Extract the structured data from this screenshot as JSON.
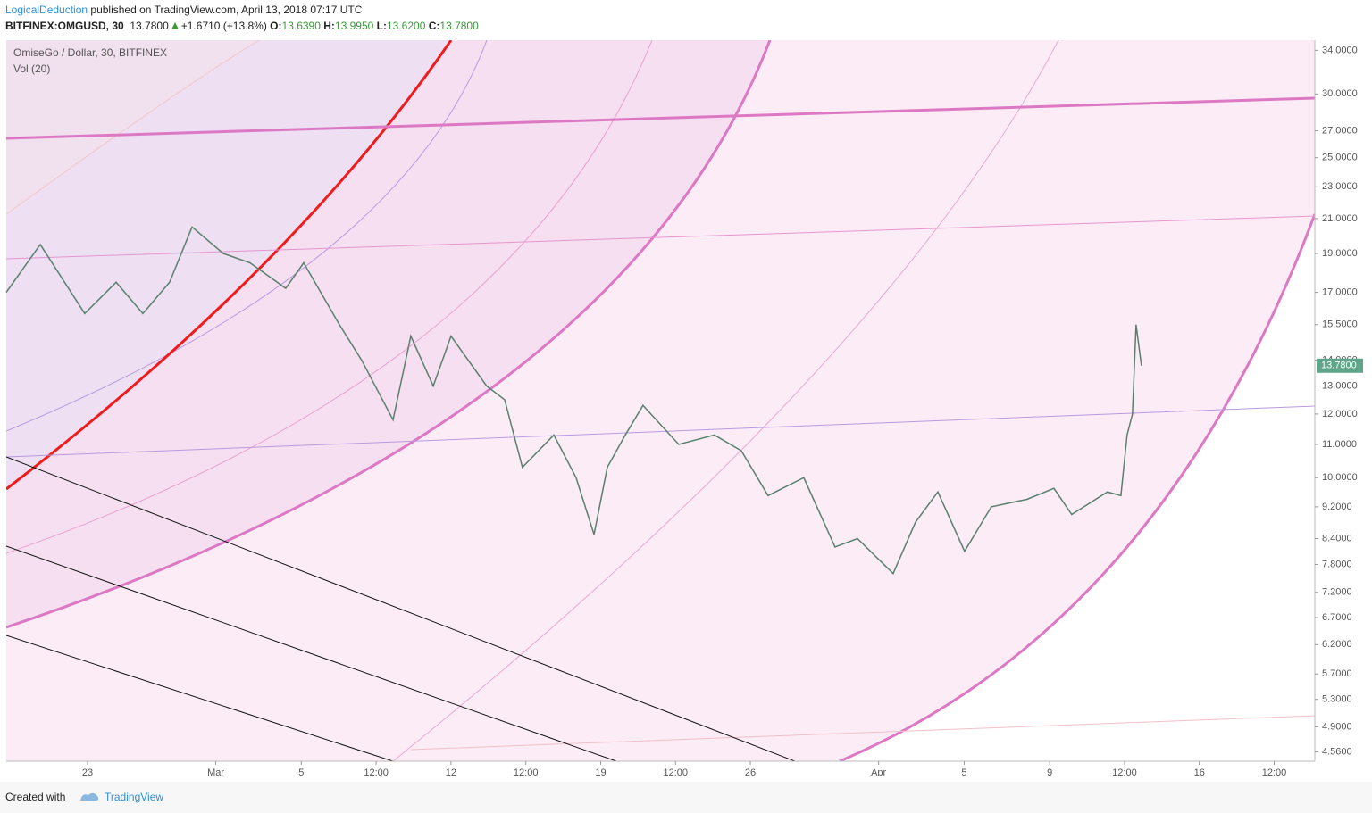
{
  "header": {
    "author": "LogicalDeduction",
    "published": "published on TradingView.com, April 13, 2018 07:17 UTC"
  },
  "symbol_bar": {
    "symbol": "BITFINEX:OMGUSD, 30",
    "last": "13.7800",
    "change": "+1.6710 (+13.8%)",
    "open": {
      "label": "O:",
      "value": "13.6390"
    },
    "high": {
      "label": "H:",
      "value": "13.9950"
    },
    "low": {
      "label": "L:",
      "value": "13.6200"
    },
    "close": {
      "label": "C:",
      "value": "13.7800"
    }
  },
  "chart_data": {
    "type": "line",
    "title": "OmiseGo / Dollar, 30, BITFINEX",
    "subtitle": "Vol (20)",
    "x": [
      -3.8,
      -2.21,
      -0.13,
      1.34,
      2.59,
      3.84,
      4.89,
      6.35,
      7.6,
      9.27,
      10.11,
      11.78,
      12.82,
      14.29,
      15.12,
      16.17,
      17,
      18.67,
      19.51,
      20.34,
      21.81,
      22.85,
      23.69,
      24.31,
      25.15,
      25.98,
      27.65,
      29.32,
      30.58,
      31.83,
      33.5,
      34.96,
      36.01,
      37.68,
      38.72,
      39.77,
      41.02,
      42.27,
      43.94,
      45.2,
      46.03,
      47.7,
      48.33,
      48.62,
      48.87,
      49.04,
      49.29
    ],
    "values": [
      17,
      19.5,
      16,
      17.5,
      16,
      17.5,
      20.5,
      19,
      18.5,
      17.2,
      18.5,
      15.5,
      14,
      11.8,
      15,
      13,
      15,
      13,
      12.5,
      10.3,
      11.3,
      10,
      8.5,
      10.3,
      11.3,
      12.3,
      11,
      11.3,
      10.8,
      9.5,
      10,
      8.2,
      8.4,
      7.6,
      8.8,
      9.6,
      8.1,
      9.2,
      9.4,
      9.7,
      9,
      9.6,
      9.5,
      11.3,
      12,
      15.5,
      13.78
    ],
    "color": "#5a7f6e",
    "log_y": true,
    "xlim": [
      -3.8,
      57.4
    ],
    "ylim": [
      4.44,
      35
    ],
    "yticks": [
      {
        "value": 34,
        "label": "34.0000"
      },
      {
        "value": 30,
        "label": "30.0000"
      },
      {
        "value": 27,
        "label": "27.0000"
      },
      {
        "value": 25,
        "label": "25.0000"
      },
      {
        "value": 23,
        "label": "23.0000"
      },
      {
        "value": 21,
        "label": "21.0000"
      },
      {
        "value": 19,
        "label": "19.0000"
      },
      {
        "value": 17,
        "label": "17.0000"
      },
      {
        "value": 15.5,
        "label": "15.5000"
      },
      {
        "value": 14,
        "label": "14.0000"
      },
      {
        "value": 13,
        "label": "13.0000"
      },
      {
        "value": 12,
        "label": "12.0000"
      },
      {
        "value": 11,
        "label": "11.0000"
      },
      {
        "value": 10,
        "label": "10.0000"
      },
      {
        "value": 9.2,
        "label": "9.2000"
      },
      {
        "value": 8.4,
        "label": "8.4000"
      },
      {
        "value": 7.8,
        "label": "7.8000"
      },
      {
        "value": 7.2,
        "label": "7.2000"
      },
      {
        "value": 6.7,
        "label": "6.7000"
      },
      {
        "value": 6.2,
        "label": "6.2000"
      },
      {
        "value": 5.7,
        "label": "5.7000"
      },
      {
        "value": 5.3,
        "label": "5.3000"
      },
      {
        "value": 4.9,
        "label": "4.9000"
      },
      {
        "value": 4.56,
        "label": "4.5600"
      }
    ],
    "xticks": [
      {
        "value": 0,
        "label": "23"
      },
      {
        "value": 6,
        "label": "Mar"
      },
      {
        "value": 10,
        "label": "5"
      },
      {
        "value": 13.5,
        "label": "12:00"
      },
      {
        "value": 17,
        "label": "12"
      },
      {
        "value": 20.5,
        "label": "12:00"
      },
      {
        "value": 24,
        "label": "19"
      },
      {
        "value": 27.5,
        "label": "12:00"
      },
      {
        "value": 31,
        "label": "26"
      },
      {
        "value": 37,
        "label": "Apr"
      },
      {
        "value": 41,
        "label": "5"
      },
      {
        "value": 45,
        "label": "9"
      },
      {
        "value": 48.5,
        "label": "12:00"
      },
      {
        "value": 52,
        "label": "16"
      },
      {
        "value": 55.5,
        "label": "12:00"
      }
    ],
    "last_price": {
      "value": 13.78,
      "label": "13.7800"
    }
  },
  "footer": {
    "created_with": "Created with",
    "brand": "TradingView"
  }
}
